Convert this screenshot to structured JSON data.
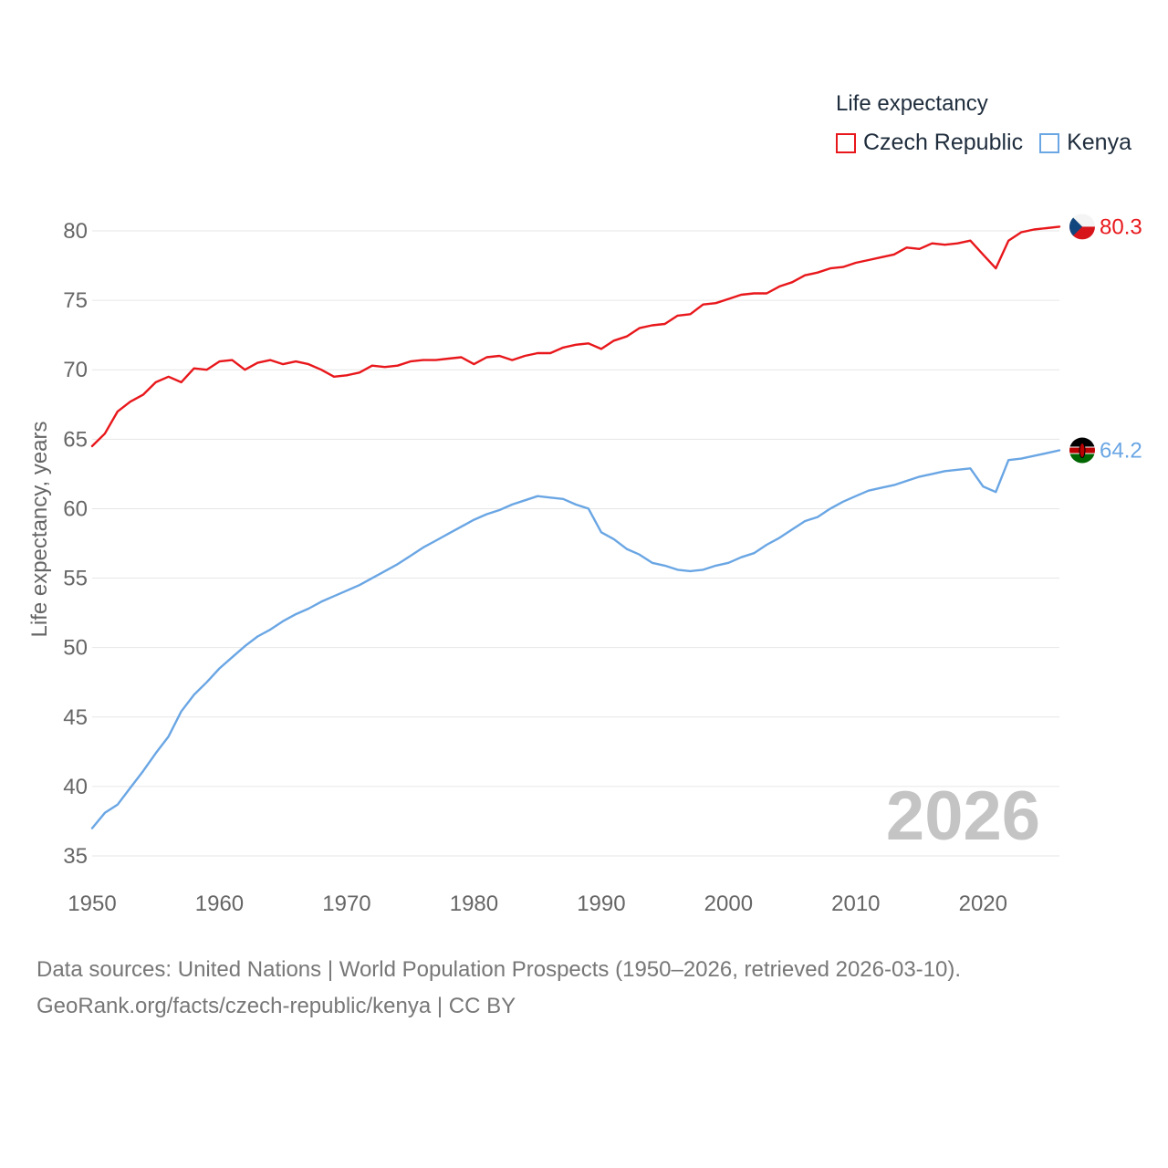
{
  "legend": {
    "title": "Life expectancy",
    "items": [
      {
        "label": "Czech Republic",
        "color": "#e8171b"
      },
      {
        "label": "Kenya",
        "color": "#6aa6e4"
      }
    ]
  },
  "year_overlay": "2026",
  "end_labels": {
    "czech": "80.3",
    "kenya": "64.2"
  },
  "footer": {
    "line1": "Data sources: United Nations | World Population Prospects (1950–2026, retrieved 2026-03-10).",
    "line2": "GeoRank.org/facts/czech-republic/kenya | CC BY"
  },
  "chart_data": {
    "type": "line",
    "title": "Life expectancy",
    "xlabel": "",
    "ylabel": "Life expectancy, years",
    "xlim": [
      1950,
      2026
    ],
    "ylim": [
      35,
      82
    ],
    "xticks": [
      1950,
      1960,
      1970,
      1980,
      1990,
      2000,
      2010,
      2020
    ],
    "yticks": [
      35,
      40,
      45,
      50,
      55,
      60,
      65,
      70,
      75,
      80
    ],
    "grid": true,
    "legend_position": "top-right",
    "x": [
      1950,
      1951,
      1952,
      1953,
      1954,
      1955,
      1956,
      1957,
      1958,
      1959,
      1960,
      1961,
      1962,
      1963,
      1964,
      1965,
      1966,
      1967,
      1968,
      1969,
      1970,
      1971,
      1972,
      1973,
      1974,
      1975,
      1976,
      1977,
      1978,
      1979,
      1980,
      1981,
      1982,
      1983,
      1984,
      1985,
      1986,
      1987,
      1988,
      1989,
      1990,
      1991,
      1992,
      1993,
      1994,
      1995,
      1996,
      1997,
      1998,
      1999,
      2000,
      2001,
      2002,
      2003,
      2004,
      2005,
      2006,
      2007,
      2008,
      2009,
      2010,
      2011,
      2012,
      2013,
      2014,
      2015,
      2016,
      2017,
      2018,
      2019,
      2020,
      2021,
      2022,
      2023,
      2024,
      2025,
      2026
    ],
    "series": [
      {
        "name": "Czech Republic",
        "color": "#e8171b",
        "values": [
          64.5,
          65.4,
          67.0,
          67.7,
          68.2,
          69.1,
          69.5,
          69.1,
          70.1,
          70.0,
          70.6,
          70.7,
          70.0,
          70.5,
          70.7,
          70.4,
          70.6,
          70.4,
          70.0,
          69.5,
          69.6,
          69.8,
          70.3,
          70.2,
          70.3,
          70.6,
          70.7,
          70.7,
          70.8,
          70.9,
          70.4,
          70.9,
          71.0,
          70.7,
          71.0,
          71.2,
          71.2,
          71.6,
          71.8,
          71.9,
          71.5,
          72.1,
          72.4,
          73.0,
          73.2,
          73.3,
          73.9,
          74.0,
          74.7,
          74.8,
          75.1,
          75.4,
          75.5,
          75.5,
          76.0,
          76.3,
          76.8,
          77.0,
          77.3,
          77.4,
          77.7,
          77.9,
          78.1,
          78.3,
          78.8,
          78.7,
          79.1,
          79.0,
          79.1,
          79.3,
          78.3,
          77.3,
          79.3,
          79.9,
          80.1,
          80.2,
          80.3
        ]
      },
      {
        "name": "Kenya",
        "color": "#6aa6e4",
        "values": [
          37.0,
          38.1,
          38.7,
          39.9,
          41.1,
          42.4,
          43.6,
          45.4,
          46.6,
          47.5,
          48.5,
          49.3,
          50.1,
          50.8,
          51.3,
          51.9,
          52.4,
          52.8,
          53.3,
          53.7,
          54.1,
          54.5,
          55.0,
          55.5,
          56.0,
          56.6,
          57.2,
          57.7,
          58.2,
          58.7,
          59.2,
          59.6,
          59.9,
          60.3,
          60.6,
          60.9,
          60.8,
          60.7,
          60.3,
          60.0,
          58.3,
          57.8,
          57.1,
          56.7,
          56.1,
          55.9,
          55.6,
          55.5,
          55.6,
          55.9,
          56.1,
          56.5,
          56.8,
          57.4,
          57.9,
          58.5,
          59.1,
          59.4,
          60.0,
          60.5,
          60.9,
          61.3,
          61.5,
          61.7,
          62.0,
          62.3,
          62.5,
          62.7,
          62.8,
          62.9,
          61.6,
          61.2,
          63.5,
          63.6,
          63.8,
          64.0,
          64.2
        ]
      }
    ]
  }
}
